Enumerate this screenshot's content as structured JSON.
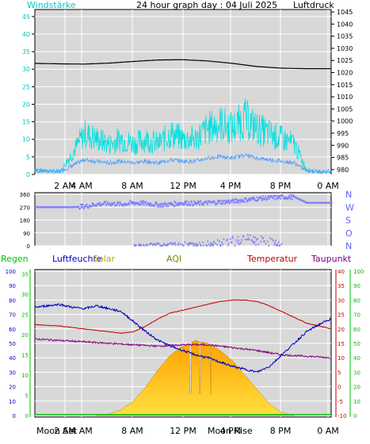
{
  "header": {
    "left_label": "Windstärke",
    "title": "24 hour graph day : 04 Juli 2025",
    "right_label": "Luftdruck"
  },
  "bottom_legend": {
    "regen": "Regen",
    "luftfeuchte": "Luftfeuchte",
    "solar": "Solar",
    "aqi": "AQI",
    "temperatur": "Temperatur",
    "taupunkt": "Taupunkt"
  },
  "moon_labels": {
    "moon_set": "Moon Set",
    "moon_rise": "Moon Rise"
  },
  "colors": {
    "background": "#ffffff",
    "plot_bg": "#d8d8d8",
    "grid": "#ffffff",
    "wind": "#00e0e0",
    "pressure": "#000000",
    "direction": "#8080ff",
    "regen": "#00c000",
    "luftfeuchte": "#0000c0",
    "solar": "#c0a000",
    "temperatur": "#c00000",
    "taupunkt": "#800080",
    "axis_text_wind": "#00c8c8",
    "axis_text_dir": "#6060ff"
  },
  "chart_data": [
    {
      "type": "line",
      "title": "24 hour graph day : 04 Juli 2025",
      "xlabel": "",
      "ylabel": "Windstärke",
      "y2label": "Luftdruck",
      "x_ticks": [
        "2 AM",
        "4 AM",
        "8 AM",
        "12 PM",
        "4 PM",
        "8 PM",
        "0 AM"
      ],
      "y_ticks": [
        "0",
        "5",
        "10",
        "15",
        "20",
        "25",
        "30",
        "35",
        "40",
        "45"
      ],
      "y2_ticks": [
        "980",
        "985",
        "990",
        "995",
        "1000",
        "1005",
        "1010",
        "1015",
        "1020",
        "1025",
        "1030",
        "1035",
        "1040",
        "1045"
      ],
      "ylim": [
        0,
        47
      ],
      "y2lim": [
        978,
        1046
      ],
      "grid": true,
      "series": [
        {
          "name": "Windstärke",
          "axis": "left",
          "x": [
            0,
            2,
            3,
            4,
            5,
            6,
            7,
            8,
            9,
            10,
            11,
            12,
            13,
            14,
            15,
            16,
            17,
            18,
            19,
            20,
            21,
            22,
            23,
            24
          ],
          "values": [
            1,
            0.5,
            4,
            8,
            7,
            6,
            7,
            6,
            7,
            6,
            8,
            7,
            7,
            9,
            10,
            9,
            11,
            9,
            8,
            7,
            6,
            1,
            0.5,
            0.5
          ]
        },
        {
          "name": "Luftdruck",
          "axis": "right",
          "x": [
            0,
            2,
            4,
            6,
            8,
            10,
            12,
            14,
            16,
            18,
            20,
            22,
            24
          ],
          "values": [
            1023.8,
            1023.6,
            1023.5,
            1023.9,
            1024.6,
            1025.2,
            1025.3,
            1024.8,
            1023.8,
            1022.5,
            1021.8,
            1021.6,
            1021.6
          ]
        }
      ]
    },
    {
      "type": "scatter",
      "ylabel": "",
      "y_ticks": [
        "0",
        "90",
        "180",
        "270",
        "360"
      ],
      "y2_ticks": [
        "N",
        "O",
        "S",
        "W",
        "N"
      ],
      "ylim": [
        0,
        360
      ],
      "grid": true,
      "series": [
        {
          "name": "",
          "x": [
            0,
            3,
            4,
            5,
            6,
            7,
            8,
            9,
            10,
            11,
            12,
            13,
            14,
            15,
            16,
            17,
            18,
            19,
            20,
            21,
            22,
            23,
            24
          ],
          "values": [
            270,
            270,
            275,
            290,
            295,
            290,
            300,
            295,
            285,
            290,
            300,
            295,
            300,
            305,
            310,
            320,
            330,
            335,
            340,
            340,
            300,
            300,
            300
          ]
        },
        {
          "name": "",
          "x": [
            8,
            9,
            10,
            11,
            12,
            13,
            14,
            15,
            16,
            17,
            18,
            19,
            20
          ],
          "values": [
            5,
            8,
            10,
            12,
            15,
            10,
            18,
            30,
            40,
            45,
            40,
            30,
            10
          ]
        }
      ]
    },
    {
      "type": "line",
      "x_ticks": [
        "2 AM",
        "4 AM",
        "8 AM",
        "12 PM",
        "4 PM",
        "8 PM",
        "0 AM"
      ],
      "regen_ticks": [
        "0",
        "5",
        "10",
        "15",
        "20",
        "25",
        "30",
        "35"
      ],
      "humidity_ticks": [
        "0",
        "10",
        "20",
        "30",
        "40",
        "50",
        "60",
        "70",
        "80",
        "90",
        "100"
      ],
      "temp_ticks": [
        "-10",
        "-5",
        "0",
        "5",
        "10",
        "15",
        "20",
        "25",
        "30",
        "35",
        "40"
      ],
      "dew_ticks": [
        "0",
        "10",
        "20",
        "30",
        "40",
        "50",
        "60",
        "70",
        "80",
        "90",
        "100"
      ],
      "humidity_range": [
        0,
        100
      ],
      "temp_range": [
        -10,
        40
      ],
      "grid": true,
      "series": [
        {
          "name": "Luftfeuchte",
          "x": [
            0,
            1,
            2,
            3,
            4,
            5,
            6,
            7,
            8,
            9,
            10,
            11,
            12,
            13,
            14,
            15,
            16,
            17,
            18,
            19,
            20,
            21,
            22,
            23,
            24
          ],
          "values": [
            75,
            76,
            77,
            75,
            74,
            76,
            74,
            72,
            65,
            58,
            52,
            48,
            45,
            42,
            40,
            37,
            34,
            32,
            30,
            34,
            42,
            50,
            58,
            63,
            67
          ]
        },
        {
          "name": "Temperatur",
          "x": [
            0,
            1,
            2,
            3,
            4,
            5,
            6,
            7,
            8,
            9,
            10,
            11,
            12,
            13,
            14,
            15,
            16,
            17,
            18,
            19,
            20,
            21,
            22,
            23,
            24
          ],
          "values": [
            21.5,
            21.2,
            21,
            20.5,
            20,
            19.5,
            19,
            18.5,
            19,
            21,
            23.5,
            25.5,
            26.5,
            27.5,
            28.5,
            29.5,
            30,
            30,
            29.5,
            28,
            26,
            24,
            22,
            21,
            20
          ]
        },
        {
          "name": "Taupunkt",
          "x": [
            0,
            2,
            4,
            6,
            8,
            10,
            12,
            14,
            16,
            18,
            20,
            22,
            24
          ],
          "values": [
            16.5,
            16,
            15.5,
            15,
            14.5,
            14,
            14.5,
            14.5,
            13.5,
            12.5,
            11,
            10.5,
            10
          ]
        },
        {
          "name": "Solar",
          "x": [
            5,
            6,
            7,
            8,
            9,
            10,
            11,
            12,
            13,
            14,
            15,
            16,
            17,
            18,
            19,
            20,
            21
          ],
          "values": [
            0,
            1,
            4,
            10,
            20,
            32,
            42,
            48,
            52,
            50,
            45,
            38,
            28,
            18,
            8,
            2,
            0
          ]
        },
        {
          "name": "Regen",
          "x": [
            0,
            24
          ],
          "values": [
            0,
            0
          ]
        }
      ]
    }
  ]
}
